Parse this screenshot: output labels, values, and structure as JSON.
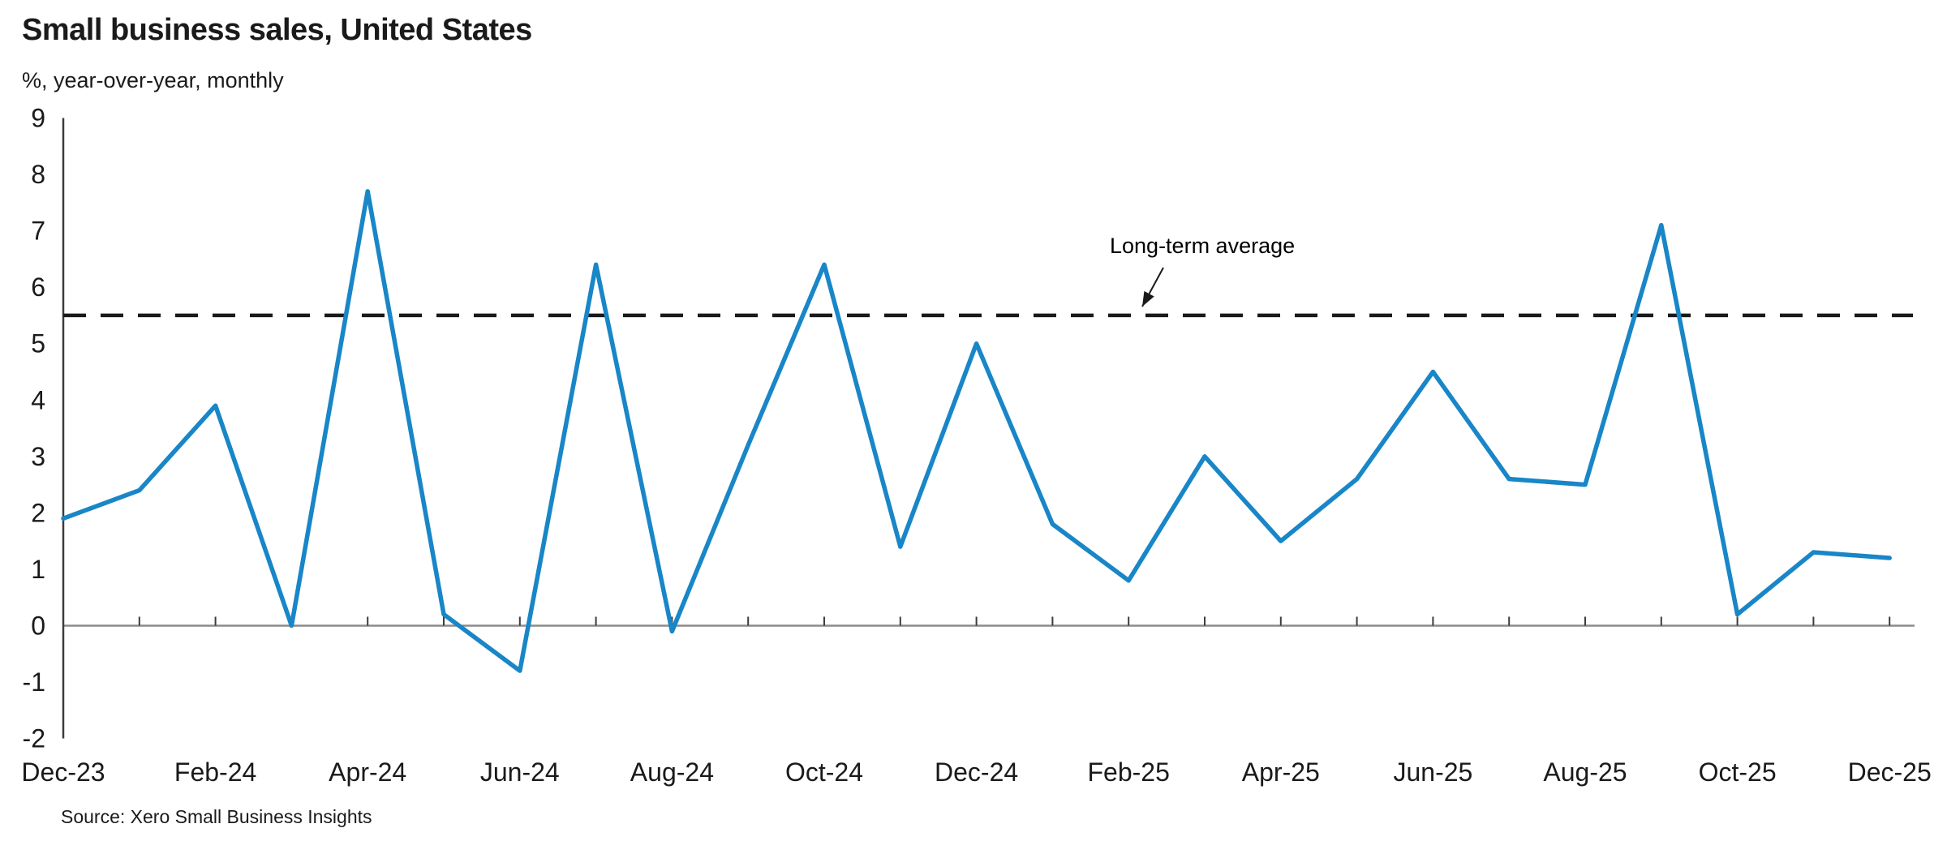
{
  "header": {
    "title": "Small business sales, United States",
    "subtitle": "%, year-over-year, monthly"
  },
  "footer": {
    "source": "Source: Xero Small Business Insights"
  },
  "colors": {
    "line": "#1886C7",
    "average_line": "#1a1a1a",
    "zero_line": "#8c8c8c",
    "axis": "#3c3c3c",
    "text": "#1a1a1a"
  },
  "chart_data": {
    "type": "line",
    "title": "Small business sales, United States",
    "subtitle": "%, year-over-year, monthly",
    "xlabel": "",
    "ylabel": "%, year-over-year",
    "ylim": [
      -2,
      9
    ],
    "grid": false,
    "legend_position": "none",
    "x": [
      "Dec-23",
      "Jan-24",
      "Feb-24",
      "Mar-24",
      "Apr-24",
      "May-24",
      "Jun-24",
      "Jul-24",
      "Aug-24",
      "Sep-24",
      "Oct-24",
      "Nov-24",
      "Dec-24",
      "Jan-25",
      "Feb-25",
      "Mar-25",
      "Apr-25",
      "May-25",
      "Jun-25",
      "Jul-25",
      "Aug-25",
      "Sep-25",
      "Oct-25",
      "Nov-25",
      "Dec-25"
    ],
    "series": [
      {
        "name": "Small business sales, year-over-year %",
        "values": [
          1.9,
          2.4,
          3.9,
          0.0,
          7.7,
          0.2,
          -0.8,
          6.4,
          -0.1,
          3.2,
          6.4,
          1.4,
          5.0,
          1.8,
          0.8,
          3.0,
          1.5,
          2.6,
          4.5,
          2.6,
          2.5,
          7.1,
          0.2,
          1.3,
          1.2
        ]
      }
    ],
    "reference_line": {
      "label": "Long-term average",
      "value": 5.5,
      "style": "dashed"
    },
    "y_ticks": [
      9,
      8,
      7,
      6,
      5,
      4,
      3,
      2,
      1,
      0,
      -1,
      -2
    ],
    "x_tick_labels": [
      "Dec-23",
      "Feb-24",
      "Apr-24",
      "Jun-24",
      "Aug-24",
      "Oct-24",
      "Dec-24",
      "Feb-25",
      "Apr-25",
      "Jun-25",
      "Aug-25",
      "Oct-25",
      "Dec-25"
    ],
    "annotation": "Long-term average",
    "source": "Source: Xero Small Business Insights"
  }
}
